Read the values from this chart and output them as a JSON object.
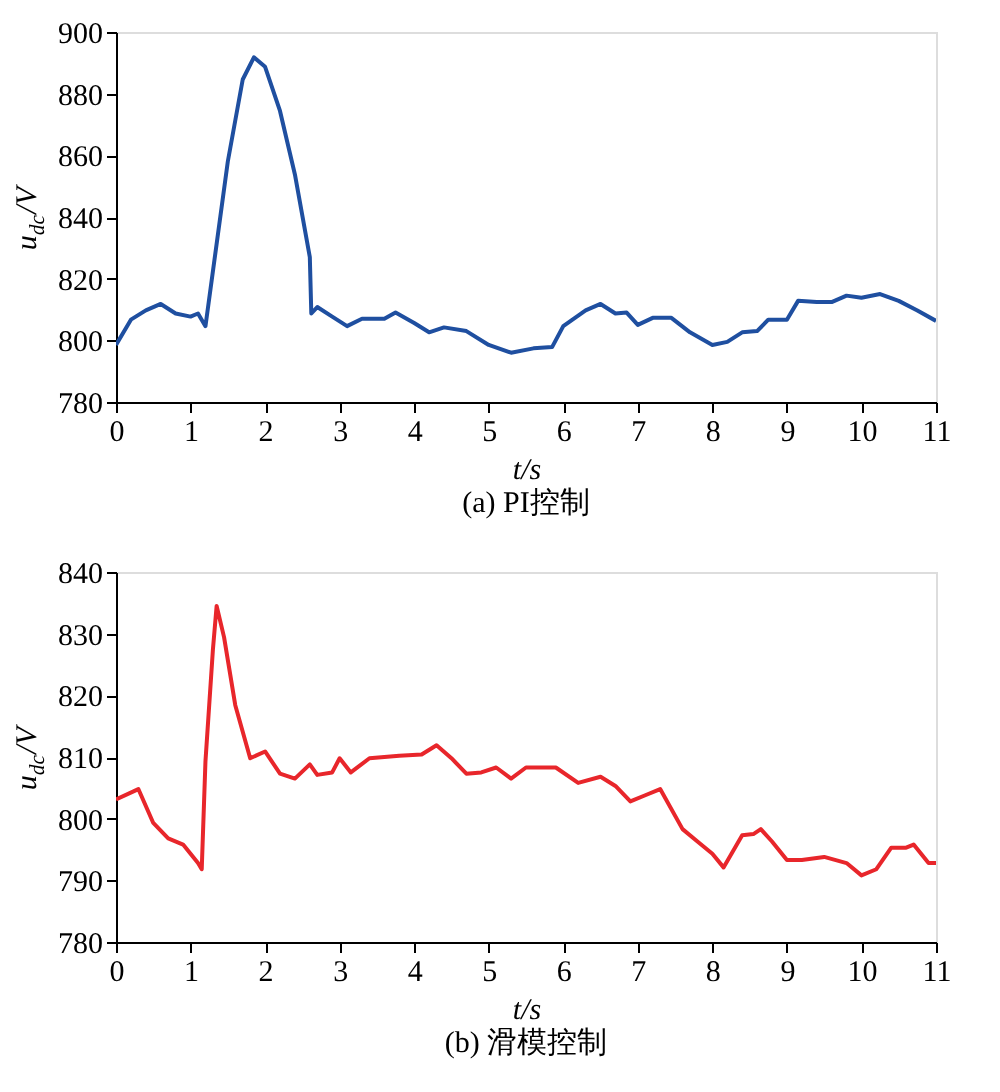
{
  "chart_data": [
    {
      "type": "line",
      "title": "(a) PI控制",
      "xlabel": "t/s",
      "ylabel": "u$_{dc}$/V",
      "xlim": [
        0,
        11
      ],
      "xticks": [
        0,
        1,
        2,
        3,
        4,
        5,
        6,
        7,
        8,
        9,
        10,
        11
      ],
      "ylim": [
        780,
        900
      ],
      "yticks": [
        780,
        800,
        820,
        840,
        860,
        880,
        900
      ],
      "grid": false,
      "series": [
        {
          "color": "#1f4fa0",
          "x": [
            0,
            0.2,
            0.4,
            0.6,
            0.8,
            1.0,
            1.1,
            1.2,
            1.5,
            1.7,
            1.85,
            2.0,
            2.2,
            2.4,
            2.6,
            2.62,
            2.7,
            2.9,
            3.1,
            3.3,
            3.6,
            3.75,
            4.0,
            4.2,
            4.4,
            4.7,
            5.0,
            5.3,
            5.6,
            5.85,
            6.0,
            6.3,
            6.5,
            6.7,
            6.85,
            7.0,
            7.2,
            7.45,
            7.7,
            8.0,
            8.2,
            8.4,
            8.6,
            8.75,
            9.0,
            9.15,
            9.4,
            9.6,
            9.8,
            10.0,
            10.25,
            10.5,
            10.75,
            11.0
          ],
          "values": [
            798.5,
            806.7,
            809.7,
            811.8,
            808.7,
            807.7,
            808.7,
            804.6,
            858,
            884.6,
            891.8,
            888.7,
            874.4,
            853.8,
            827,
            808.7,
            810.8,
            807.7,
            804.6,
            807,
            807,
            809,
            805.6,
            802.6,
            804.2,
            803,
            798.5,
            796,
            797.4,
            797.8,
            804.6,
            809.7,
            811.8,
            808.7,
            809,
            805,
            807.3,
            807.3,
            802.6,
            798.5,
            799.5,
            802.6,
            803,
            806.7,
            806.7,
            812.8,
            812.4,
            812.4,
            814.5,
            813.8,
            815,
            812.8,
            809.7,
            806.3
          ]
        }
      ]
    },
    {
      "type": "line",
      "title": "(b) 滑模控制",
      "xlabel": "t/s",
      "ylabel": "u$_{dc}$/V",
      "xlim": [
        0,
        11
      ],
      "xticks": [
        0,
        1,
        2,
        3,
        4,
        5,
        6,
        7,
        8,
        9,
        10,
        11
      ],
      "ylim": [
        780,
        840
      ],
      "yticks": [
        780,
        790,
        800,
        810,
        820,
        830,
        840
      ],
      "grid": false,
      "series": [
        {
          "color": "#e8262b",
          "x": [
            0,
            0.3,
            0.5,
            0.7,
            0.9,
            1.1,
            1.15,
            1.2,
            1.3,
            1.35,
            1.45,
            1.6,
            1.8,
            2.0,
            2.2,
            2.4,
            2.6,
            2.7,
            2.9,
            3.0,
            3.15,
            3.4,
            3.8,
            4.1,
            4.3,
            4.5,
            4.7,
            4.9,
            5.1,
            5.3,
            5.5,
            5.9,
            6.2,
            6.5,
            6.7,
            6.9,
            7.1,
            7.3,
            7.6,
            7.8,
            8.0,
            8.15,
            8.4,
            8.55,
            8.65,
            8.8,
            9.0,
            9.2,
            9.5,
            9.8,
            10.0,
            10.2,
            10.4,
            10.6,
            10.7,
            10.9,
            11.0
          ],
          "values": [
            803.1,
            804.8,
            799.3,
            796.8,
            795.8,
            792.8,
            791.8,
            809.3,
            827.4,
            834.5,
            829.4,
            818.4,
            809.8,
            810.9,
            807.3,
            806.5,
            808.8,
            807.1,
            807.5,
            809.8,
            807.5,
            809.8,
            810.2,
            810.4,
            811.9,
            809.8,
            807.3,
            807.5,
            808.3,
            806.5,
            808.3,
            808.3,
            805.8,
            806.8,
            805.3,
            802.8,
            803.8,
            804.8,
            798.3,
            796.3,
            794.3,
            792.1,
            797.3,
            797.5,
            798.3,
            796.3,
            793.3,
            793.3,
            793.8,
            792.8,
            790.8,
            791.8,
            795.3,
            795.3,
            795.8,
            792.8,
            792.8
          ]
        }
      ]
    }
  ]
}
